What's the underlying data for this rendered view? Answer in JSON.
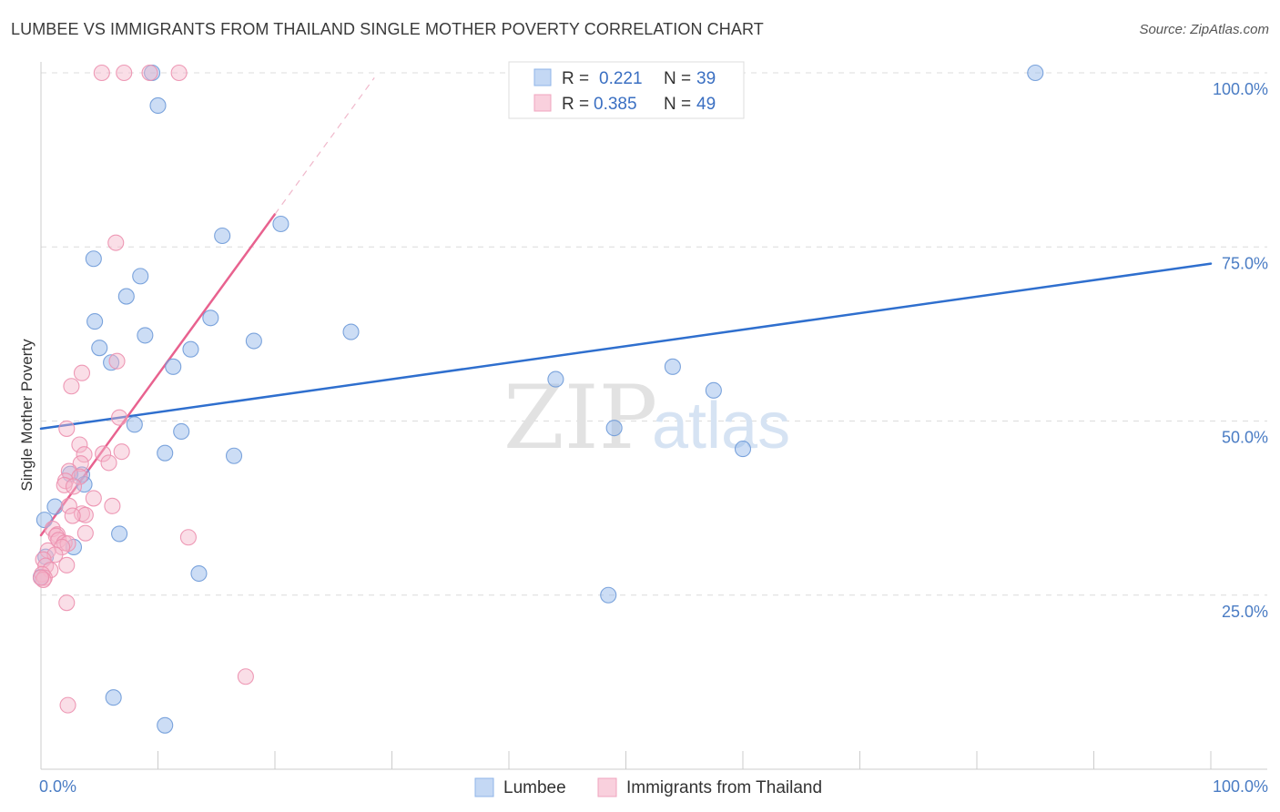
{
  "header": {
    "title": "LUMBEE VS IMMIGRANTS FROM THAILAND SINGLE MOTHER POVERTY CORRELATION CHART",
    "source": "Source: ZipAtlas.com"
  },
  "chart_data": {
    "type": "scatter",
    "title": "LUMBEE VS IMMIGRANTS FROM THAILAND SINGLE MOTHER POVERTY CORRELATION CHART",
    "xlabel": "",
    "ylabel": "Single Mother Poverty",
    "xlim": [
      0,
      100
    ],
    "ylim": [
      0,
      100
    ],
    "x_tick_labels": [
      "0.0%",
      "100.0%"
    ],
    "y_ticks": [
      25,
      50,
      75,
      100
    ],
    "y_tick_labels": [
      "25.0%",
      "50.0%",
      "75.0%",
      "100.0%"
    ],
    "grid": true,
    "legend_position": "top-center",
    "watermark": {
      "zip": "ZIP",
      "atlas": "atlas"
    },
    "stats": [
      {
        "series": "Lumbee",
        "r_label": "R =",
        "r_value": "0.221",
        "n_label": "N =",
        "n_value": "39"
      },
      {
        "series": "Immigrants from Thailand",
        "r_label": "R =",
        "r_value": "0.385",
        "n_label": "N =",
        "n_value": "49"
      }
    ],
    "series": [
      {
        "name": "Lumbee",
        "color": "#8fb4e8",
        "edge": "#6e9ad8",
        "trend_color": "#2f6fce",
        "trend": {
          "x0": 0,
          "y0": 48.9,
          "x1": 100,
          "y1": 72.6
        },
        "points": [
          [
            9.5,
            100.0
          ],
          [
            10.0,
            95.3
          ],
          [
            85.0,
            100.0
          ],
          [
            20.5,
            78.3
          ],
          [
            15.5,
            76.6
          ],
          [
            4.5,
            73.3
          ],
          [
            8.5,
            70.8
          ],
          [
            7.3,
            67.9
          ],
          [
            14.5,
            64.8
          ],
          [
            4.6,
            64.3
          ],
          [
            26.5,
            62.8
          ],
          [
            8.9,
            62.3
          ],
          [
            18.2,
            61.5
          ],
          [
            5.0,
            60.5
          ],
          [
            12.8,
            60.3
          ],
          [
            6.0,
            58.4
          ],
          [
            54.0,
            57.8
          ],
          [
            11.3,
            57.8
          ],
          [
            44.0,
            56.0
          ],
          [
            49.0,
            49.0
          ],
          [
            57.5,
            54.4
          ],
          [
            8.0,
            49.5
          ],
          [
            12.0,
            48.5
          ],
          [
            10.6,
            45.4
          ],
          [
            16.5,
            45.0
          ],
          [
            60.0,
            46.0
          ],
          [
            2.5,
            42.4
          ],
          [
            3.5,
            42.3
          ],
          [
            3.7,
            40.9
          ],
          [
            1.2,
            37.7
          ],
          [
            0.3,
            35.8
          ],
          [
            6.7,
            33.8
          ],
          [
            2.8,
            31.9
          ],
          [
            0.4,
            30.5
          ],
          [
            13.5,
            28.1
          ],
          [
            48.5,
            25.0
          ],
          [
            6.2,
            10.3
          ],
          [
            10.6,
            6.3
          ],
          [
            0.0,
            27.6
          ]
        ]
      },
      {
        "name": "Immigrants from Thailand",
        "color": "#f5b5ca",
        "edge": "#ec8fae",
        "trend_color": "#e8628f",
        "trend": {
          "x0": 0,
          "y0": 33.6,
          "x1": 20,
          "y1": 79.7
        },
        "trend_dash": {
          "x0": 20,
          "y0": 79.7,
          "x1": 28.5,
          "y1": 99.3
        },
        "points": [
          [
            5.2,
            100.0
          ],
          [
            7.1,
            100.0
          ],
          [
            9.3,
            100.0
          ],
          [
            11.8,
            100.0
          ],
          [
            6.4,
            75.6
          ],
          [
            3.5,
            56.9
          ],
          [
            2.6,
            55.0
          ],
          [
            6.5,
            58.6
          ],
          [
            6.7,
            50.5
          ],
          [
            2.2,
            48.9
          ],
          [
            3.3,
            46.6
          ],
          [
            3.7,
            45.2
          ],
          [
            5.3,
            45.3
          ],
          [
            6.9,
            45.6
          ],
          [
            3.4,
            43.9
          ],
          [
            5.8,
            44.0
          ],
          [
            2.4,
            42.8
          ],
          [
            3.3,
            42.0
          ],
          [
            2.1,
            41.4
          ],
          [
            2.0,
            40.8
          ],
          [
            2.8,
            40.6
          ],
          [
            4.5,
            38.9
          ],
          [
            6.1,
            37.8
          ],
          [
            2.4,
            37.8
          ],
          [
            3.5,
            36.7
          ],
          [
            3.8,
            36.5
          ],
          [
            2.7,
            36.4
          ],
          [
            1.0,
            34.5
          ],
          [
            1.4,
            33.7
          ],
          [
            3.8,
            33.9
          ],
          [
            1.3,
            33.5
          ],
          [
            1.5,
            32.9
          ],
          [
            12.6,
            33.3
          ],
          [
            2.0,
            32.5
          ],
          [
            2.3,
            32.4
          ],
          [
            1.8,
            31.9
          ],
          [
            0.6,
            31.4
          ],
          [
            1.2,
            30.8
          ],
          [
            0.2,
            30.1
          ],
          [
            2.2,
            29.3
          ],
          [
            0.4,
            29.2
          ],
          [
            0.8,
            28.6
          ],
          [
            0.1,
            28.0
          ],
          [
            0.3,
            27.5
          ],
          [
            0.2,
            27.2
          ],
          [
            0.0,
            27.5
          ],
          [
            2.2,
            23.9
          ],
          [
            17.5,
            13.3
          ],
          [
            2.3,
            9.2
          ]
        ]
      }
    ]
  }
}
